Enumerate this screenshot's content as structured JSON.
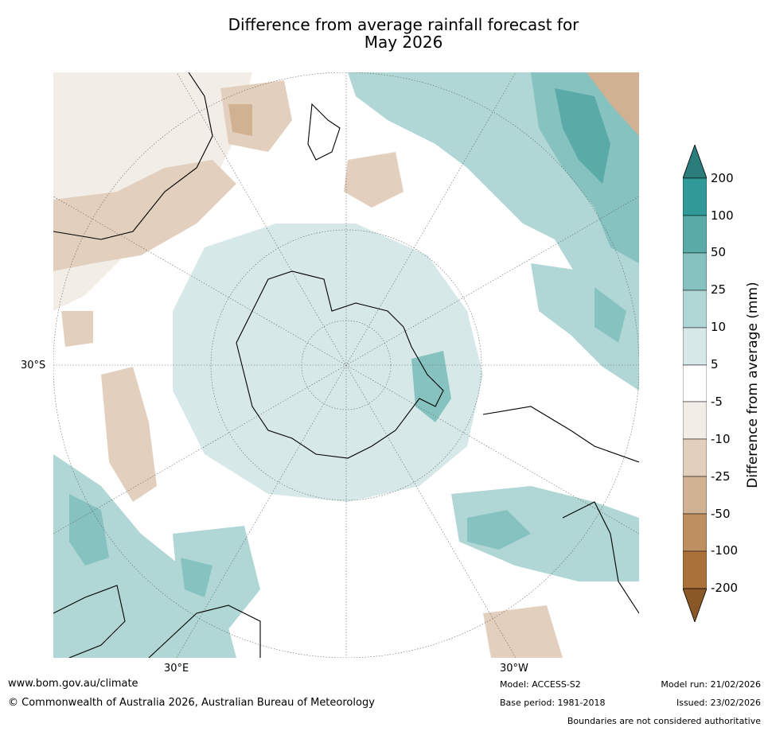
{
  "title": {
    "line1": "Difference from average rainfall forecast for",
    "line2": "May 2026"
  },
  "map": {
    "projection": "south-polar-stereographic",
    "labels": {
      "lat_30s": "30°S",
      "lon_30e": "30°E",
      "lon_30w": "30°W"
    }
  },
  "colorbar": {
    "title": "Difference from average (mm)",
    "ticks": [
      "200",
      "100",
      "50",
      "25",
      "10",
      "5",
      "-5",
      "-10",
      "-25",
      "-50",
      "-100",
      "-200"
    ],
    "colors": {
      "over": "#2a7d7a",
      "b100_200": "#2f9a97",
      "b50_100": "#5aaaa8",
      "b25_50": "#86c3c0",
      "b10_25": "#b0d7d5",
      "b5_10": "#d6e9e8",
      "neutral": "#ffffff",
      "bm10_m5": "#f2ede7",
      "bm25_m10": "#e3cfbd",
      "bm50_m25": "#d0b191",
      "bm100_m50": "#be8f61",
      "bm200_m100": "#aa713b",
      "under": "#8a5826"
    }
  },
  "footer": {
    "website": "www.bom.gov.au/climate",
    "copyright": "© Commonwealth of Australia 2026, Australian Bureau of Meteorology",
    "model": "Model: ACCESS-S2",
    "base_period": "Base period: 1981-2018",
    "model_run": "Model run: 21/02/2026",
    "issued": "Issued: 23/02/2026",
    "disclaimer": "Boundaries are not considered authoritative"
  }
}
